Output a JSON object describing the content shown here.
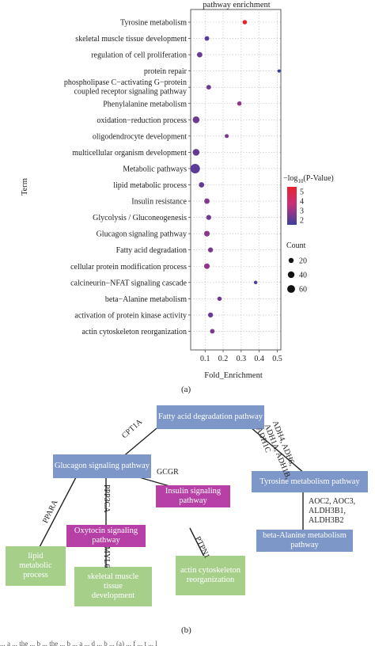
{
  "panel_a": {
    "caption": "(a)",
    "chart_data": {
      "type": "scatter",
      "title": "pathway enrichment",
      "xlabel": "Fold_Enrichment",
      "ylabel": "Term",
      "xlim": [
        0.02,
        0.52
      ],
      "xticks": [
        0.1,
        0.2,
        0.3,
        0.4,
        0.5
      ],
      "xtick_labels": [
        "0.1",
        "0.2",
        "0.3",
        "0.4",
        "0.5"
      ],
      "points": [
        {
          "term": "Tyrosine metabolism",
          "x": 0.32,
          "count": 8,
          "neglog10p": 5.5
        },
        {
          "term": "skeletal muscle tissue development",
          "x": 0.11,
          "count": 10,
          "neglog10p": 2.0
        },
        {
          "term": "regulation of cell proliferation",
          "x": 0.07,
          "count": 15,
          "neglog10p": 2.2
        },
        {
          "term": "protein repair",
          "x": 0.51,
          "count": 3,
          "neglog10p": 1.5
        },
        {
          "term": "phospholipase C−activating G−protein coupled receptor signaling pathway",
          "x": 0.12,
          "count": 10,
          "neglog10p": 2.4
        },
        {
          "term": "Phenylalanine metabolism",
          "x": 0.29,
          "count": 8,
          "neglog10p": 2.8
        },
        {
          "term": "oxidation−reduction process",
          "x": 0.05,
          "count": 28,
          "neglog10p": 2.3
        },
        {
          "term": "oligodendrocyte development",
          "x": 0.22,
          "count": 6,
          "neglog10p": 2.4
        },
        {
          "term": "multicellular organism development",
          "x": 0.05,
          "count": 28,
          "neglog10p": 2.1
        },
        {
          "term": "Metabolic pathways",
          "x": 0.045,
          "count": 65,
          "neglog10p": 2.0
        },
        {
          "term": "lipid metabolic process",
          "x": 0.08,
          "count": 15,
          "neglog10p": 2.1
        },
        {
          "term": "Insulin resistance",
          "x": 0.11,
          "count": 15,
          "neglog10p": 2.6
        },
        {
          "term": "Glycolysis / Gluconeogenesis",
          "x": 0.12,
          "count": 12,
          "neglog10p": 2.4
        },
        {
          "term": "Glucagon signaling pathway",
          "x": 0.11,
          "count": 17,
          "neglog10p": 2.7
        },
        {
          "term": "Fatty acid degradation",
          "x": 0.13,
          "count": 12,
          "neglog10p": 2.5
        },
        {
          "term": "cellular protein modification process",
          "x": 0.11,
          "count": 17,
          "neglog10p": 2.9
        },
        {
          "term": "calcineurin−NFAT signaling cascade",
          "x": 0.38,
          "count": 4,
          "neglog10p": 1.8
        },
        {
          "term": "beta−Alanine metabolism",
          "x": 0.18,
          "count": 8,
          "neglog10p": 2.3
        },
        {
          "term": "activation of protein kinase activity",
          "x": 0.13,
          "count": 12,
          "neglog10p": 2.2
        },
        {
          "term": "actin cytoskeleton reorganization",
          "x": 0.14,
          "count": 10,
          "neglog10p": 2.5
        }
      ],
      "color_legend": {
        "title_prefix": "−log",
        "title_sub": "10",
        "title_suffix": "(P-Value)",
        "labels": [
          "5",
          "4",
          "3",
          "2"
        ],
        "low_color": "#3b3f9e",
        "high_color": "#e8232f"
      },
      "size_legend": {
        "title": "Count",
        "labels": [
          "20",
          "40",
          "60"
        ],
        "values": [
          20,
          40,
          60
        ]
      },
      "grid": true,
      "legend_position": "right"
    }
  },
  "panel_b": {
    "caption": "(b)",
    "nodes": {
      "fatty_acid": "Fatty acid degradation pathway",
      "glucagon": "Glucagon signaling pathway",
      "tyrosine": "Tyrosine metabolism pathway",
      "insulin": "Insulin signaling pathway",
      "oxytocin": "Oxytocin signaling pathway",
      "beta_alanine": "beta-Alanine metabolism pathway",
      "lipid": "lipid metabolic process",
      "skeletal": "skeletal muscle tissue development",
      "actin": "actin cytoskeleton reorganization"
    },
    "edges": {
      "cpt1a": "CPT1A",
      "adh": "ADH4, ADH6, ADH1A, ADH1B, ADH1C",
      "ppp3ca": "PPP3CA",
      "gcgr": "GCGR",
      "ppara": "PPARA",
      "myl6": "MYL6",
      "ptpn1": "PTPN1",
      "aoc": "AOC2, AOC3, ALDH3B1, ALDH3B2"
    },
    "colors": {
      "pathway": "#7d97c9",
      "signaling": "#b640a6",
      "process": "#a6d08a"
    }
  },
  "footer_fragment": "... a ... the ... b ... the ... b ... a ... d ... b ... (a) ... f ... t ... l"
}
